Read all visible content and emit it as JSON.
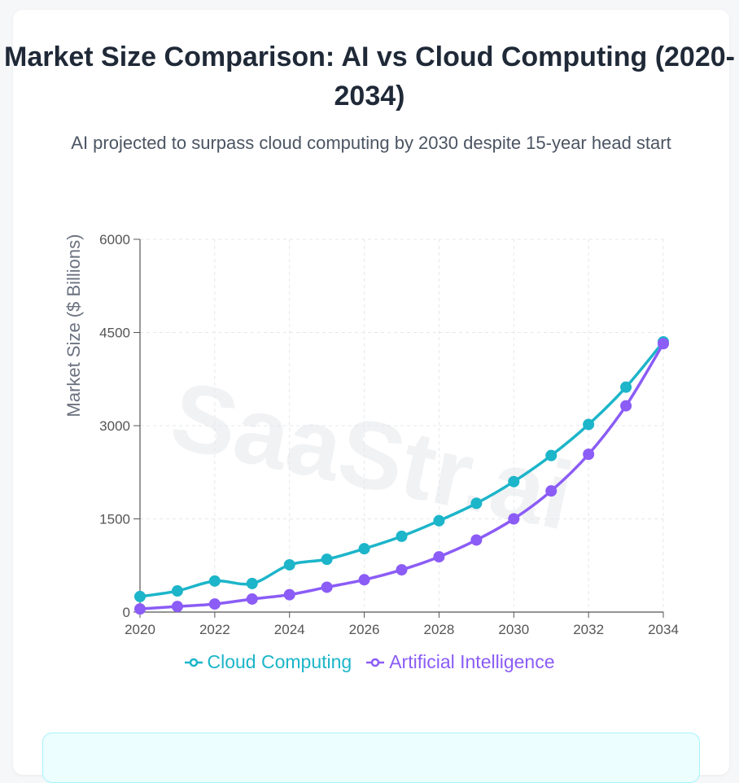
{
  "header": {
    "title": "Market Size Comparison: AI vs Cloud Computing (2020-2034)",
    "subtitle": "AI projected to surpass cloud computing by 2030 despite 15-year head start"
  },
  "watermark": "SaaStr.ai",
  "colors": {
    "cloud": "#1cb5c9",
    "ai": "#8b5cf6",
    "text": "#1f2937",
    "axis": "#555555",
    "grid": "#e5e7eb"
  },
  "chart_data": {
    "type": "line",
    "title": "Market Size Comparison: AI vs Cloud Computing (2020-2034)",
    "xlabel": "",
    "ylabel": "Market Size ($ Billions)",
    "x": [
      2020,
      2021,
      2022,
      2023,
      2024,
      2025,
      2026,
      2027,
      2028,
      2029,
      2030,
      2031,
      2032,
      2033,
      2034
    ],
    "xticks": [
      "2020",
      "2022",
      "2024",
      "2026",
      "2028",
      "2030",
      "2032",
      "2034"
    ],
    "yticks": [
      "0",
      "1500",
      "3000",
      "4500",
      "6000"
    ],
    "xlim": [
      2020,
      2034
    ],
    "ylim": [
      0,
      6000
    ],
    "grid": true,
    "legend_position": "bottom",
    "series": [
      {
        "name": "Cloud Computing",
        "values": [
          250,
          340,
          500,
          460,
          760,
          850,
          1020,
          1220,
          1470,
          1750,
          2100,
          2520,
          3020,
          3620,
          4350
        ]
      },
      {
        "name": "Artificial Intelligence",
        "values": [
          50,
          90,
          130,
          210,
          280,
          400,
          520,
          680,
          890,
          1160,
          1500,
          1950,
          2540,
          3320,
          4320
        ]
      }
    ]
  }
}
